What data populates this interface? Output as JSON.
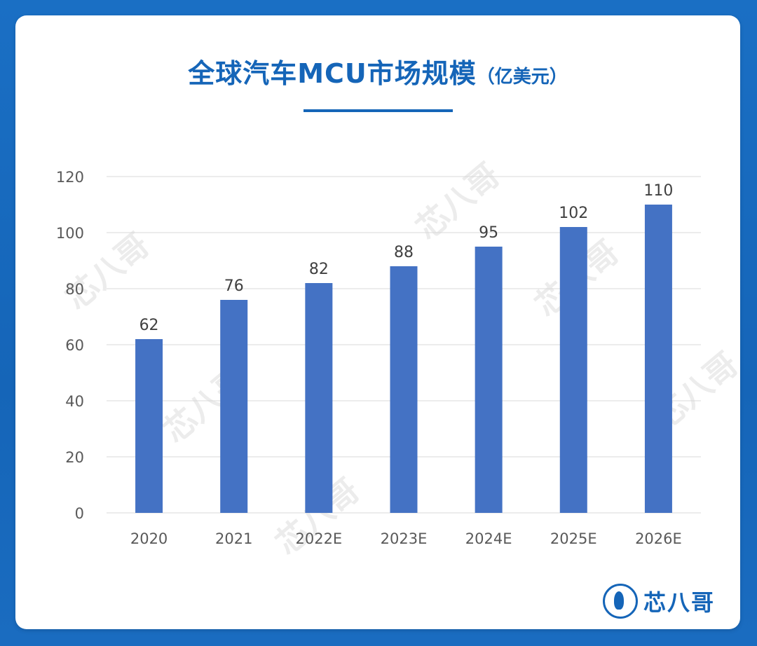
{
  "title": {
    "main": "全球汽车MCU市场规模",
    "unit": "（亿美元）"
  },
  "watermark": {
    "text": "芯八哥"
  },
  "logo": {
    "text": "芯八哥",
    "icon": "bird-circle-icon"
  },
  "colors": {
    "bar": "#4472c4",
    "title": "#1565b8",
    "grid": "#d9d9d9",
    "tick": "#595959"
  },
  "chart_data": {
    "type": "bar",
    "categories": [
      "2020",
      "2021",
      "2022E",
      "2023E",
      "2024E",
      "2025E",
      "2026E"
    ],
    "values": [
      62,
      76,
      82,
      88,
      95,
      102,
      110
    ],
    "data_labels": [
      "62",
      "76",
      "82",
      "88",
      "95",
      "102",
      "110"
    ],
    "ylim": [
      0,
      120
    ],
    "yticks": [
      0,
      20,
      40,
      60,
      80,
      100,
      120
    ],
    "grid": true,
    "legend": "none",
    "xlabel": "",
    "ylabel": ""
  }
}
